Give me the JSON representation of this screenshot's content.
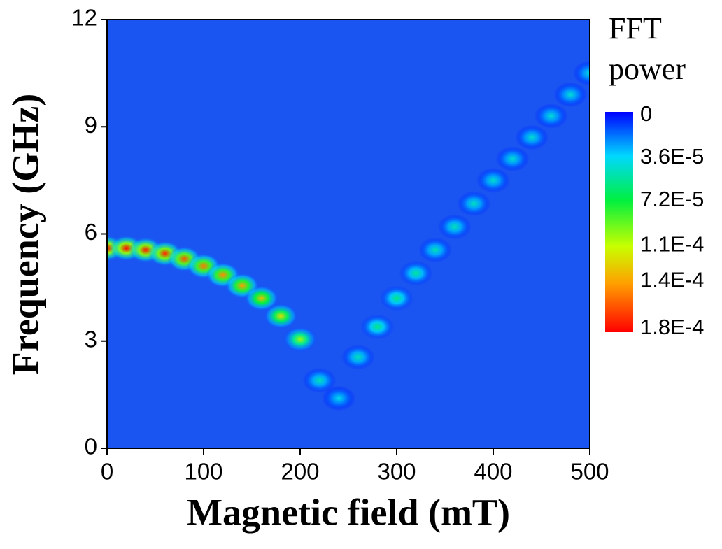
{
  "chart_data": {
    "type": "heatmap",
    "xlabel": "Magnetic field (mT)",
    "ylabel": "Frequency (GHz)",
    "colorbar_title": [
      "FFT",
      "power"
    ],
    "x": [
      0,
      20,
      40,
      60,
      80,
      100,
      120,
      140,
      160,
      180,
      200,
      220,
      240,
      260,
      280,
      300,
      320,
      340,
      360,
      380,
      400,
      420,
      440,
      460,
      480,
      500
    ],
    "y": [
      5.6,
      5.6,
      5.55,
      5.45,
      5.3,
      5.1,
      4.85,
      4.55,
      4.2,
      3.7,
      3.05,
      1.9,
      1.4,
      2.55,
      3.4,
      4.2,
      4.9,
      5.55,
      6.2,
      6.85,
      7.5,
      8.1,
      8.7,
      9.3,
      9.9,
      10.5
    ],
    "values": [
      0.00018,
      0.00018,
      0.000175,
      0.00017,
      0.00016,
      0.00015,
      0.000145,
      0.00014,
      0.00013,
      0.00012,
      0.0001,
      5e-05,
      4e-05,
      5e-05,
      6e-05,
      6e-05,
      5.5e-05,
      5e-05,
      5e-05,
      4.8e-05,
      4.6e-05,
      4.5e-05,
      4.5e-05,
      4.4e-05,
      4.4e-05,
      4.3e-05
    ],
    "xlim": [
      0,
      500
    ],
    "xticks": [
      0,
      100,
      200,
      300,
      400,
      500
    ],
    "ylim": [
      0,
      12
    ],
    "yticks": [
      0,
      3,
      6,
      9,
      12
    ],
    "zlim": [
      0,
      0.00018
    ],
    "zticks": [
      0,
      {
        "value": 3.6e-05,
        "label": "3.6E-5"
      },
      {
        "value": 7.2e-05,
        "label": "7.2E-5"
      },
      {
        "value": 0.00011,
        "label": "1.1E-4"
      },
      {
        "value": 0.00014,
        "label": "1.4E-4"
      },
      {
        "value": 0.00018,
        "label": "1.8E-4"
      }
    ],
    "colorscale": [
      "#0000ff",
      "#00d8ff",
      "#00f040",
      "#c8ff00",
      "#ffa000",
      "#ff0000"
    ],
    "background_color": "#1a55f2"
  }
}
